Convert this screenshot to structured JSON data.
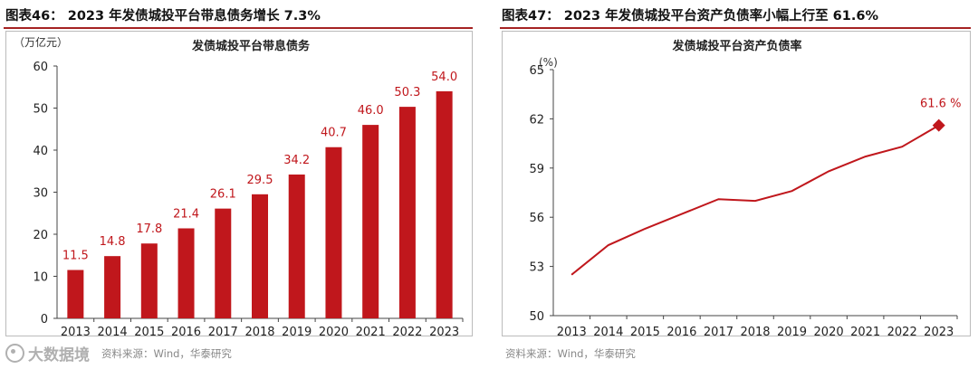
{
  "left": {
    "figure_title": "图表46： 2023 年发债城投平台带息债务增长 7.3%",
    "source": "资料来源：Wind，华泰研究",
    "watermark": "大数据境"
  },
  "right": {
    "figure_title": "图表47： 2023 年发债城投平台资产负债率小幅上行至 61.6%",
    "source": "资料来源：Wind，华泰研究"
  },
  "colors": {
    "bar": "#c0171c",
    "line": "#c0171c",
    "label": "#c0171c",
    "axis": "#444444",
    "rule": "#a52222"
  },
  "chart_data": [
    {
      "type": "bar",
      "title": "发债城投平台带息债务",
      "ylabel": "（万亿元）",
      "xlabel": "",
      "categories": [
        "2013",
        "2014",
        "2015",
        "2016",
        "2017",
        "2018",
        "2019",
        "2020",
        "2021",
        "2022",
        "2023"
      ],
      "values": [
        11.5,
        14.8,
        17.8,
        21.4,
        26.1,
        29.5,
        34.2,
        40.7,
        46.0,
        50.3,
        54.0
      ],
      "value_labels": [
        "11.5",
        "14.8",
        "17.8",
        "21.4",
        "26.1",
        "29.5",
        "34.2",
        "40.7",
        "46.0",
        "50.3",
        "54.0"
      ],
      "ylim": [
        0,
        60
      ],
      "yticks": [
        "0",
        "10",
        "20",
        "30",
        "40",
        "50",
        "60"
      ],
      "grid": false
    },
    {
      "type": "line",
      "title": "发债城投平台资产负债率",
      "ylabel": "(%)",
      "xlabel": "",
      "categories": [
        "2013",
        "2014",
        "2015",
        "2016",
        "2017",
        "2018",
        "2019",
        "2020",
        "2021",
        "2022",
        "2023"
      ],
      "values": [
        52.5,
        54.3,
        55.3,
        56.2,
        57.1,
        57.0,
        57.6,
        58.8,
        59.7,
        60.3,
        61.6
      ],
      "ylim": [
        50,
        65
      ],
      "yticks": [
        "50",
        "53",
        "56",
        "59",
        "62",
        "65"
      ],
      "annotation": "61.6 %",
      "grid": false
    }
  ]
}
